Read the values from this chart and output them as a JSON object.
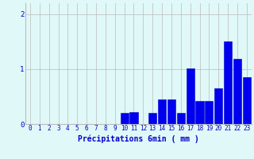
{
  "categories": [
    0,
    1,
    2,
    3,
    4,
    5,
    6,
    7,
    8,
    9,
    10,
    11,
    12,
    13,
    14,
    15,
    16,
    17,
    18,
    19,
    20,
    21,
    22,
    23
  ],
  "values": [
    0,
    0,
    0,
    0,
    0,
    0,
    0,
    0,
    0,
    0,
    0.2,
    0.22,
    0,
    0.2,
    0.45,
    0.45,
    0.2,
    1.02,
    0.42,
    0.42,
    0.65,
    1.5,
    1.18,
    0.85
  ],
  "bar_color": "#0000ee",
  "bar_edge_color": "#0000cc",
  "background_color": "#e0f8f8",
  "grid_color": "#bbbbbb",
  "xlabel": "Précipitations 6min ( mm )",
  "xlim": [
    -0.5,
    23.5
  ],
  "ylim": [
    0,
    2.2
  ],
  "yticks": [
    0,
    1,
    2
  ],
  "xticks": [
    0,
    1,
    2,
    3,
    4,
    5,
    6,
    7,
    8,
    9,
    10,
    11,
    12,
    13,
    14,
    15,
    16,
    17,
    18,
    19,
    20,
    21,
    22,
    23
  ],
  "tick_color": "#0000cc",
  "label_fontsize": 7,
  "tick_fontsize": 5.5
}
